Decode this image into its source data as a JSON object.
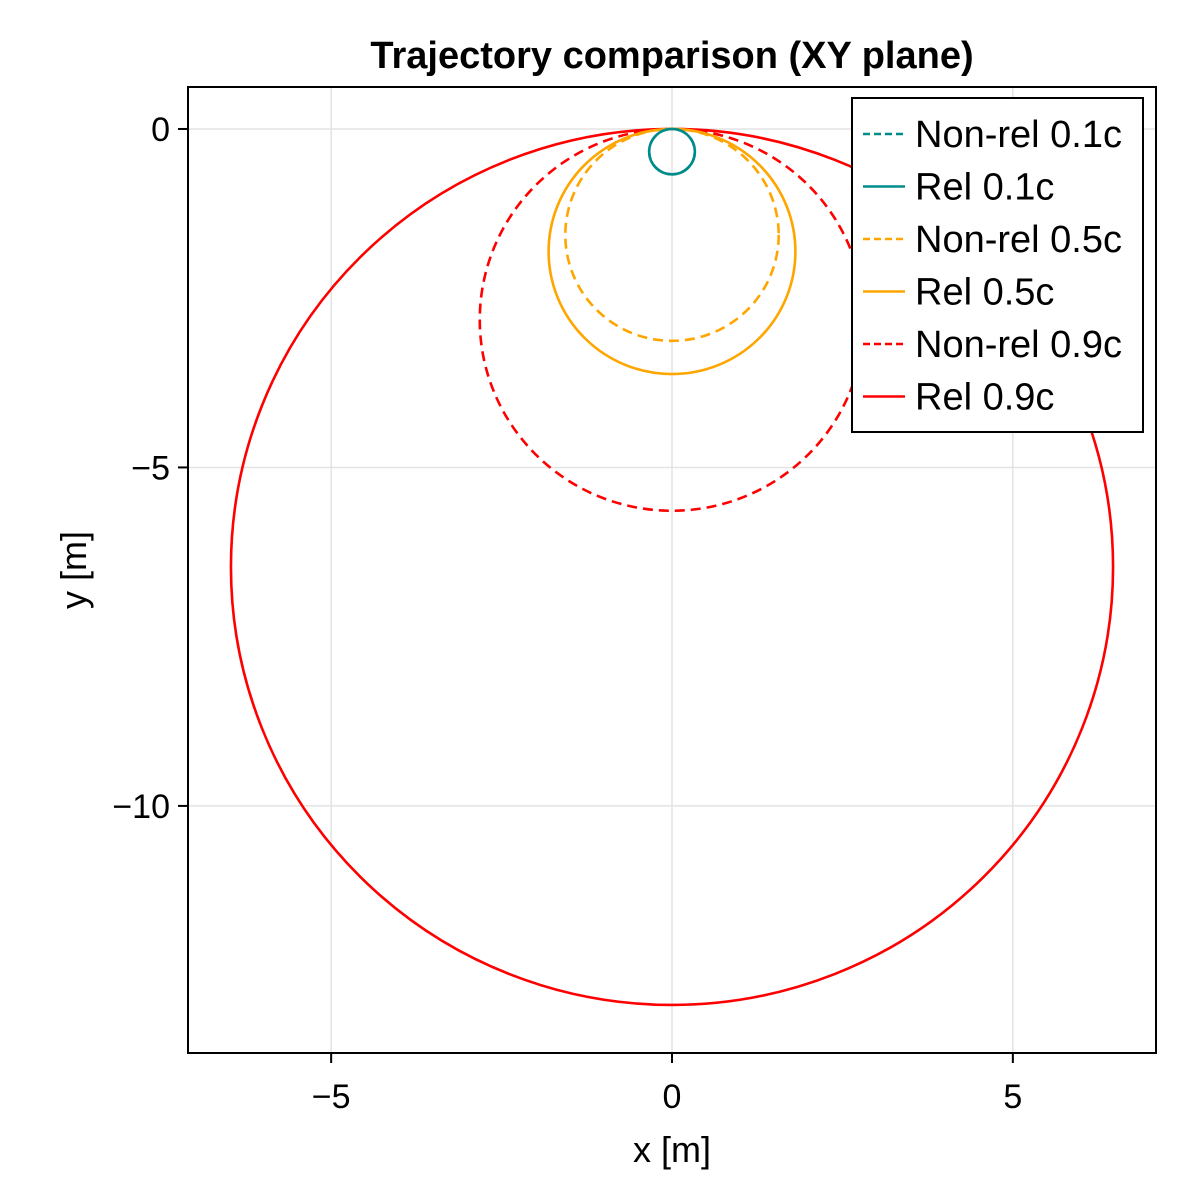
{
  "chart_data": {
    "type": "line",
    "title": "Trajectory comparison (XY plane)",
    "xlabel": "x [m]",
    "ylabel": "y [m]",
    "xlim": [
      -7.1,
      7.1
    ],
    "ylim": [
      -13.65,
      0.62
    ],
    "xticks": [
      -5,
      0,
      5
    ],
    "xtick_labels": [
      "−5",
      "0",
      "5"
    ],
    "yticks": [
      0,
      -5,
      -10
    ],
    "ytick_labels": [
      "0",
      "−5",
      "−10"
    ],
    "grid": true,
    "legend_position": "top-right",
    "series": [
      {
        "name": "Non-rel 0.1c",
        "color": "#008b8b",
        "dash": true,
        "shape": "circle",
        "center": [
          0,
          -0.335
        ],
        "radius": 0.335
      },
      {
        "name": "Rel 0.1c",
        "color": "#008b8b",
        "dash": false,
        "shape": "circle",
        "center": [
          0,
          -0.335
        ],
        "radius": 0.335
      },
      {
        "name": "Non-rel 0.5c",
        "color": "#ffa500",
        "dash": true,
        "shape": "circle",
        "center": [
          0,
          -1.565
        ],
        "radius": 1.565
      },
      {
        "name": "Rel 0.5c",
        "color": "#ffa500",
        "dash": false,
        "shape": "circle",
        "center": [
          0,
          -1.81
        ],
        "radius": 1.81
      },
      {
        "name": "Non-rel 0.9c",
        "color": "#ff0000",
        "dash": true,
        "shape": "circle",
        "center": [
          0,
          -2.82
        ],
        "radius": 2.82
      },
      {
        "name": "Rel 0.9c",
        "color": "#ff0000",
        "dash": false,
        "shape": "circle",
        "center": [
          0,
          -6.47
        ],
        "radius": 6.47
      }
    ]
  }
}
